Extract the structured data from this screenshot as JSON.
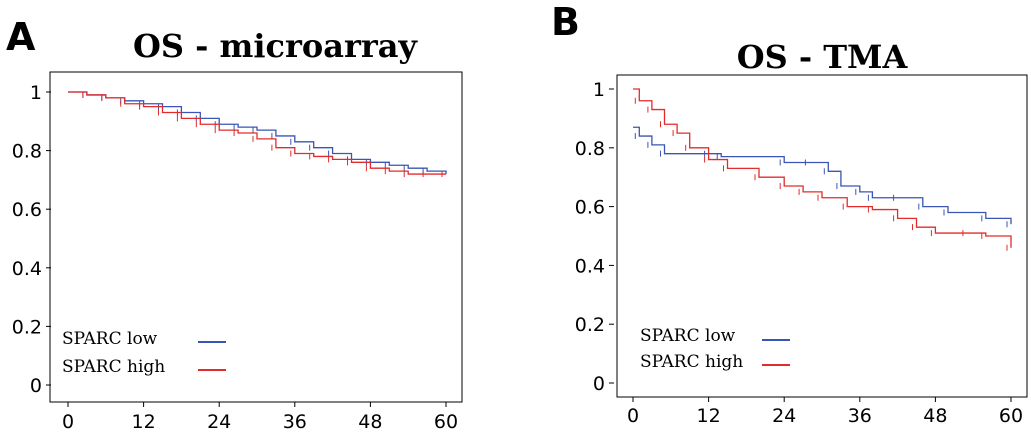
{
  "chart_data": [
    {
      "panel": "A",
      "type": "line",
      "title": "OS - microarray",
      "xlim": [
        0,
        60
      ],
      "ylim": [
        0,
        1
      ],
      "xticks": [
        0,
        12,
        24,
        36,
        48,
        60
      ],
      "yticks": [
        0,
        0.2,
        0.4,
        0.6,
        0.8,
        1
      ],
      "ytick_labels": [
        "0",
        "0.2",
        "0.4",
        "0.6",
        "0.8",
        "1"
      ],
      "legend": "bottom-left",
      "series": [
        {
          "name": "SPARC low",
          "color": "#3a55b4",
          "x": [
            0,
            3,
            6,
            9,
            12,
            15,
            18,
            21,
            24,
            27,
            30,
            33,
            36,
            39,
            42,
            45,
            48,
            51,
            54,
            57,
            60
          ],
          "y": [
            1.0,
            0.99,
            0.98,
            0.97,
            0.96,
            0.95,
            0.93,
            0.91,
            0.89,
            0.88,
            0.87,
            0.85,
            0.83,
            0.81,
            0.79,
            0.77,
            0.76,
            0.75,
            0.74,
            0.73,
            0.72
          ]
        },
        {
          "name": "SPARC high",
          "color": "#e32b2b",
          "x": [
            0,
            3,
            6,
            9,
            12,
            15,
            18,
            21,
            24,
            27,
            30,
            33,
            36,
            39,
            42,
            45,
            48,
            51,
            54,
            57,
            60
          ],
          "y": [
            1.0,
            0.99,
            0.98,
            0.96,
            0.95,
            0.93,
            0.91,
            0.89,
            0.87,
            0.86,
            0.84,
            0.81,
            0.79,
            0.78,
            0.77,
            0.76,
            0.74,
            0.73,
            0.72,
            0.72,
            0.72
          ]
        }
      ]
    },
    {
      "panel": "B",
      "type": "line",
      "title": "OS - TMA",
      "xlim": [
        0,
        60
      ],
      "ylim": [
        0,
        1
      ],
      "xticks": [
        0,
        12,
        24,
        36,
        48,
        60
      ],
      "yticks": [
        0,
        0.2,
        0.4,
        0.6,
        0.8,
        1
      ],
      "ytick_labels": [
        "0",
        "0.2",
        "0.4",
        "0.6",
        "0.8",
        "1"
      ],
      "legend": "bottom-left",
      "series": [
        {
          "name": "SPARC low",
          "color": "#3a55b4",
          "x": [
            0,
            1,
            3,
            5,
            12,
            14,
            24,
            28,
            31,
            33,
            36,
            38,
            42,
            46,
            50,
            56,
            60
          ],
          "y": [
            0.87,
            0.84,
            0.81,
            0.78,
            0.78,
            0.77,
            0.75,
            0.75,
            0.72,
            0.67,
            0.65,
            0.63,
            0.63,
            0.6,
            0.58,
            0.56,
            0.54
          ]
        },
        {
          "name": "SPARC high",
          "color": "#e32b2b",
          "x": [
            0,
            1,
            3,
            5,
            7,
            9,
            12,
            15,
            20,
            24,
            27,
            30,
            34,
            38,
            42,
            45,
            48,
            53,
            56,
            60
          ],
          "y": [
            1.0,
            0.96,
            0.93,
            0.88,
            0.85,
            0.8,
            0.76,
            0.73,
            0.7,
            0.67,
            0.65,
            0.63,
            0.6,
            0.59,
            0.56,
            0.53,
            0.51,
            0.51,
            0.5,
            0.46
          ]
        }
      ]
    }
  ]
}
